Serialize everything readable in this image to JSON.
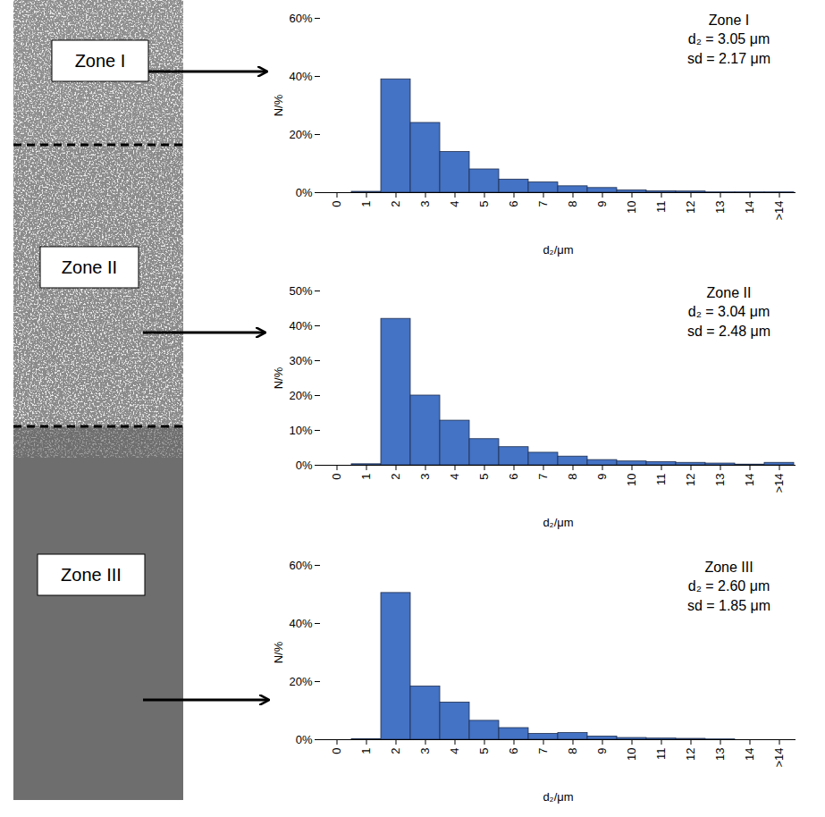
{
  "micrograph": {
    "zone_labels": [
      "Zone I",
      "Zone II",
      "Zone III"
    ]
  },
  "chart_data": [
    {
      "type": "bar",
      "title": "Zone I",
      "annotations": [
        "Zone I",
        "d₂ = 3.05 μm",
        "sd = 2.17 μm"
      ],
      "x_label": "d₂/μm",
      "y_label": "N/%",
      "categories": [
        "0",
        "1",
        "2",
        "3",
        "4",
        "5",
        "6",
        "7",
        "8",
        "9",
        "10",
        "11",
        "12",
        "13",
        "14",
        ">14"
      ],
      "values": [
        0,
        0.3,
        39,
        24,
        14,
        8,
        4.5,
        3.5,
        2.2,
        1.6,
        0.8,
        0.5,
        0.4,
        0.1,
        0.1,
        0.1
      ],
      "color": "#4472c4",
      "ylim": [
        0,
        60
      ],
      "yticks": [
        {
          "value": 0,
          "label": "0%"
        },
        {
          "value": 20,
          "label": "20%"
        },
        {
          "value": 40,
          "label": "40%"
        },
        {
          "value": 60,
          "label": "60%"
        }
      ],
      "grid": false
    },
    {
      "type": "bar",
      "title": "Zone II",
      "annotations": [
        "Zone II",
        "d₂ = 3.04 μm",
        "sd = 2.48 μm"
      ],
      "x_label": "d₂/μm",
      "y_label": "N/%",
      "categories": [
        "0",
        "1",
        "2",
        "3",
        "4",
        "5",
        "6",
        "7",
        "8",
        "9",
        "10",
        "11",
        "12",
        "13",
        "14",
        ">14"
      ],
      "values": [
        0,
        0.3,
        42,
        20,
        12.8,
        7.5,
        5.2,
        3.6,
        2.5,
        1.5,
        1.1,
        0.9,
        0.7,
        0.5,
        0.2,
        0.7
      ],
      "color": "#4472c4",
      "ylim": [
        0,
        50
      ],
      "yticks": [
        {
          "value": 0,
          "label": "0%"
        },
        {
          "value": 10,
          "label": "10%"
        },
        {
          "value": 20,
          "label": "20%"
        },
        {
          "value": 30,
          "label": "30%"
        },
        {
          "value": 40,
          "label": "40%"
        },
        {
          "value": 50,
          "label": "50%"
        }
      ],
      "grid": false
    },
    {
      "type": "bar",
      "title": "Zone III",
      "annotations": [
        "Zone III",
        "d₂ = 2.60 μm",
        "sd = 1.85 μm"
      ],
      "x_label": "d₂/μm",
      "y_label": "N/%",
      "categories": [
        "0",
        "1",
        "2",
        "3",
        "4",
        "5",
        "6",
        "7",
        "8",
        "9",
        "10",
        "11",
        "12",
        "13",
        "14",
        ">14"
      ],
      "values": [
        0,
        0.2,
        50.5,
        18.3,
        12.8,
        6.5,
        4,
        2,
        2.3,
        1.1,
        0.6,
        0.4,
        0.3,
        0.1,
        0,
        0
      ],
      "color": "#4472c4",
      "ylim": [
        0,
        60
      ],
      "yticks": [
        {
          "value": 0,
          "label": "0%"
        },
        {
          "value": 20,
          "label": "20%"
        },
        {
          "value": 40,
          "label": "40%"
        },
        {
          "value": 60,
          "label": "60%"
        }
      ],
      "grid": false
    }
  ]
}
